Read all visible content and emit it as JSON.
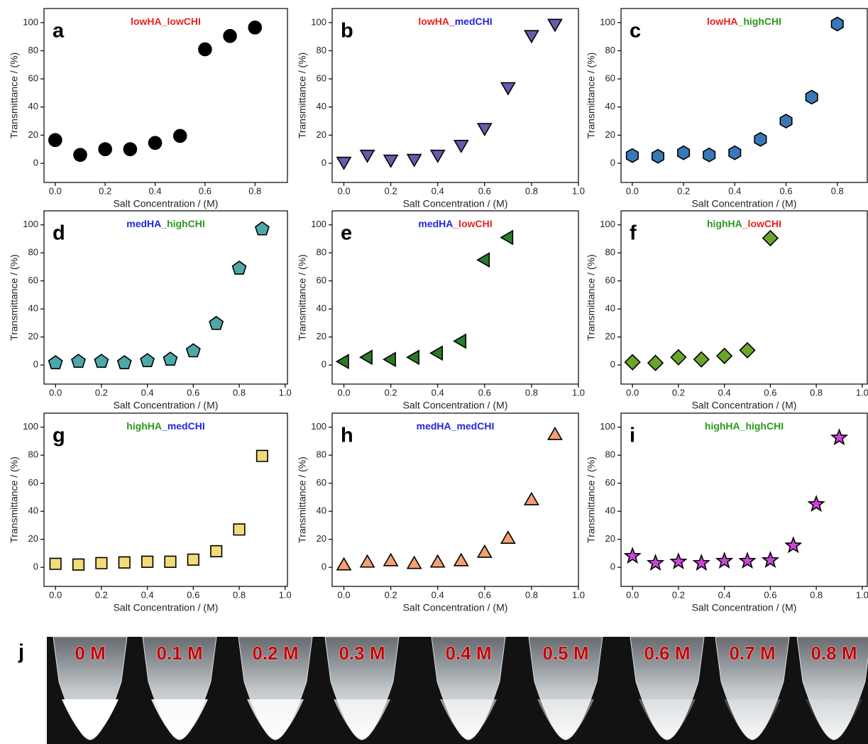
{
  "chart_data": [
    {
      "type": "scatter",
      "panel_label": "a",
      "title": [
        {
          "text": "lowHA",
          "color": "#e8221c"
        },
        {
          "text": "_lowCHI",
          "color": "#e8221c"
        }
      ],
      "marker": "circle",
      "color": "#000000",
      "x_label": "Salt Concentration / (M)",
      "y_label": "Transmittance / (%)",
      "x": [
        0,
        0.1,
        0.2,
        0.3,
        0.4,
        0.5,
        0.6,
        0.7,
        0.8
      ],
      "values": [
        16.5,
        6,
        10,
        10,
        14.5,
        19.5,
        81,
        90.5,
        96.5
      ],
      "xlim": [
        -0.045,
        0.93
      ],
      "xticks": [
        {
          "value": 0,
          "label": "0.0"
        },
        0.2,
        0.4,
        0.6,
        0.8
      ],
      "ylim": [
        -13.6,
        110
      ],
      "yticks": [
        0,
        20,
        40,
        60,
        80,
        100
      ]
    },
    {
      "type": "scatter",
      "panel_label": "b",
      "title": [
        {
          "text": "lowHA",
          "color": "#e8221c"
        },
        {
          "text": "_medCHI",
          "color": "#2424e0"
        }
      ],
      "marker": "triangle-down",
      "color": "#6a5aab",
      "x_label": "Salt Concentration / (M)",
      "y_label": "Transmittance / (%)",
      "x": [
        0,
        0.1,
        0.2,
        0.3,
        0.4,
        0.5,
        0.6,
        0.7,
        0.8,
        0.9
      ],
      "values": [
        1,
        6,
        2.5,
        3,
        6,
        13,
        25,
        54,
        91,
        99
      ],
      "xlim": [
        -0.05,
        1.0
      ],
      "xticks": [
        {
          "value": 0,
          "label": "0.0"
        },
        0.2,
        0.4,
        0.6,
        0.8,
        {
          "value": 1,
          "label": "1.0"
        }
      ],
      "ylim": [
        -13.6,
        110
      ],
      "yticks": [
        0,
        20,
        40,
        60,
        80,
        100
      ]
    },
    {
      "type": "scatter",
      "panel_label": "c",
      "title": [
        {
          "text": "lowHA",
          "color": "#e8221c"
        },
        {
          "text": "_highCHI",
          "color": "#2a9a1c"
        }
      ],
      "marker": "hexagon",
      "color": "#3a78b8",
      "x_label": "Salt Concentration / (M)",
      "y_label": "Transmittance / (%)",
      "x": [
        0,
        0.1,
        0.2,
        0.3,
        0.4,
        0.5,
        0.6,
        0.7,
        0.8
      ],
      "values": [
        5.5,
        5,
        7.5,
        6,
        7.5,
        17,
        30,
        47,
        99
      ],
      "xlim": [
        -0.044,
        0.917
      ],
      "xticks": [
        {
          "value": 0,
          "label": "0.0"
        },
        0.2,
        0.4,
        0.6,
        0.8
      ],
      "ylim": [
        -13.6,
        110
      ],
      "yticks": [
        0,
        20,
        40,
        60,
        80,
        100
      ]
    },
    {
      "type": "scatter",
      "panel_label": "d",
      "title": [
        {
          "text": "medHA",
          "color": "#2424e0"
        },
        {
          "text": "_highCHI",
          "color": "#2a9a1c"
        }
      ],
      "marker": "pentagon",
      "color": "#4fa8a8",
      "x_label": "Salt Concentration / (M)",
      "y_label": "Transmittance / (%)",
      "x": [
        0,
        0.1,
        0.2,
        0.3,
        0.4,
        0.5,
        0.6,
        0.7,
        0.8,
        0.9
      ],
      "values": [
        1.5,
        2.5,
        2.5,
        1.5,
        3,
        4,
        10,
        29.5,
        69,
        97
      ],
      "xlim": [
        -0.05,
        1.01
      ],
      "xticks": [
        {
          "value": 0,
          "label": "0.0"
        },
        0.2,
        0.4,
        0.6,
        0.8,
        {
          "value": 1,
          "label": "1.0"
        }
      ],
      "ylim": [
        -13.6,
        110
      ],
      "yticks": [
        0,
        20,
        40,
        60,
        80,
        100
      ]
    },
    {
      "type": "scatter",
      "panel_label": "e",
      "title": [
        {
          "text": "medHA",
          "color": "#2424e0"
        },
        {
          "text": "_lowCHI",
          "color": "#e8221c"
        }
      ],
      "marker": "triangle-left",
      "color": "#2a7a2a",
      "x_label": "Salt Concentration / (M)",
      "y_label": "Transmittance / (%)",
      "x": [
        0,
        0.1,
        0.2,
        0.3,
        0.4,
        0.5,
        0.6,
        0.7
      ],
      "values": [
        2.5,
        5.5,
        4,
        5.5,
        8.5,
        17,
        75,
        91
      ],
      "xlim": [
        -0.05,
        1.0
      ],
      "xticks": [
        {
          "value": 0,
          "label": "0.0"
        },
        0.2,
        0.4,
        0.6,
        0.8,
        {
          "value": 1,
          "label": "1.0"
        }
      ],
      "ylim": [
        -13.6,
        110
      ],
      "yticks": [
        0,
        20,
        40,
        60,
        80,
        100
      ]
    },
    {
      "type": "scatter",
      "panel_label": "f",
      "title": [
        {
          "text": "highHA",
          "color": "#2a9a1c"
        },
        {
          "text": "_lowCHI",
          "color": "#e8221c"
        }
      ],
      "marker": "diamond",
      "color": "#6aa62a",
      "x_label": "Salt Concentration / (M)",
      "y_label": "Transmittance / (%)",
      "x": [
        0,
        0.1,
        0.2,
        0.3,
        0.4,
        0.5,
        0.6
      ],
      "values": [
        2,
        1.5,
        5.5,
        4,
        6.5,
        10.5,
        90.5
      ],
      "xlim": [
        -0.05,
        1.022
      ],
      "xticks": [
        {
          "value": 0,
          "label": "0.0"
        },
        0.2,
        0.4,
        0.6,
        0.8,
        {
          "value": 1,
          "label": "1.0"
        }
      ],
      "ylim": [
        -13.6,
        110
      ],
      "yticks": [
        0,
        20,
        40,
        60,
        80,
        100
      ]
    },
    {
      "type": "scatter",
      "panel_label": "g",
      "title": [
        {
          "text": "highHA",
          "color": "#2a9a1c"
        },
        {
          "text": "_medCHI",
          "color": "#2424e0"
        }
      ],
      "marker": "square",
      "color": "#f3dc78",
      "x_label": "Salt Concentration / (M)",
      "y_label": "Transmittance / (%)",
      "x": [
        0,
        0.1,
        0.2,
        0.3,
        0.4,
        0.5,
        0.6,
        0.7,
        0.8,
        0.9
      ],
      "values": [
        2.5,
        2,
        3,
        3.5,
        4,
        4,
        5.5,
        11.5,
        27,
        79.5
      ],
      "xlim": [
        -0.05,
        1.01
      ],
      "xticks": [
        {
          "value": 0,
          "label": "0.0"
        },
        0.2,
        0.4,
        0.6,
        0.8,
        {
          "value": 1,
          "label": "1.0"
        }
      ],
      "ylim": [
        -13.6,
        110
      ],
      "yticks": [
        0,
        20,
        40,
        60,
        80,
        100
      ]
    },
    {
      "type": "scatter",
      "panel_label": "h",
      "title": [
        {
          "text": "medHA",
          "color": "#2424e0"
        },
        {
          "text": "_medCHI",
          "color": "#2424e0"
        }
      ],
      "marker": "triangle-up",
      "color": "#f4a070",
      "x_label": "Salt Concentration / (M)",
      "y_label": "Transmittance / (%)",
      "x": [
        0,
        0.1,
        0.2,
        0.3,
        0.4,
        0.5,
        0.6,
        0.7,
        0.8,
        0.9
      ],
      "values": [
        1.5,
        3.5,
        4.5,
        2.5,
        3.5,
        4.5,
        10.5,
        20.5,
        48,
        94.5
      ],
      "xlim": [
        -0.05,
        1.0
      ],
      "xticks": [
        {
          "value": 0,
          "label": "0.0"
        },
        0.2,
        0.4,
        0.6,
        0.8,
        {
          "value": 1,
          "label": "1.0"
        }
      ],
      "ylim": [
        -13.6,
        110
      ],
      "yticks": [
        0,
        20,
        40,
        60,
        80,
        100
      ]
    },
    {
      "type": "scatter",
      "panel_label": "i",
      "title": [
        {
          "text": "highHA",
          "color": "#2a9a1c"
        },
        {
          "text": "_highCHI",
          "color": "#2a9a1c"
        }
      ],
      "marker": "star",
      "color": "#cc44dd",
      "x_label": "Salt Concentration / (M)",
      "y_label": "Transmittance / (%)",
      "x": [
        0,
        0.1,
        0.2,
        0.3,
        0.4,
        0.5,
        0.6,
        0.7,
        0.8,
        0.9
      ],
      "values": [
        8,
        3,
        4,
        3,
        4.5,
        4.5,
        5,
        15.5,
        45,
        92.5
      ],
      "xlim": [
        -0.05,
        1.022
      ],
      "xticks": [
        {
          "value": 0,
          "label": "0.0"
        },
        0.2,
        0.4,
        0.6,
        0.8,
        {
          "value": 1,
          "label": "1.0"
        }
      ],
      "ylim": [
        -13.6,
        110
      ],
      "yticks": [
        0,
        20,
        40,
        60,
        80,
        100
      ]
    }
  ],
  "photo": {
    "panel_label": "j",
    "tube_labels": [
      "0 M",
      "0.1 M",
      "0.2 M",
      "0.3 M",
      "0.4 M",
      "0.5 M",
      "0.6 M",
      "0.7 M",
      "0.8 M"
    ]
  }
}
